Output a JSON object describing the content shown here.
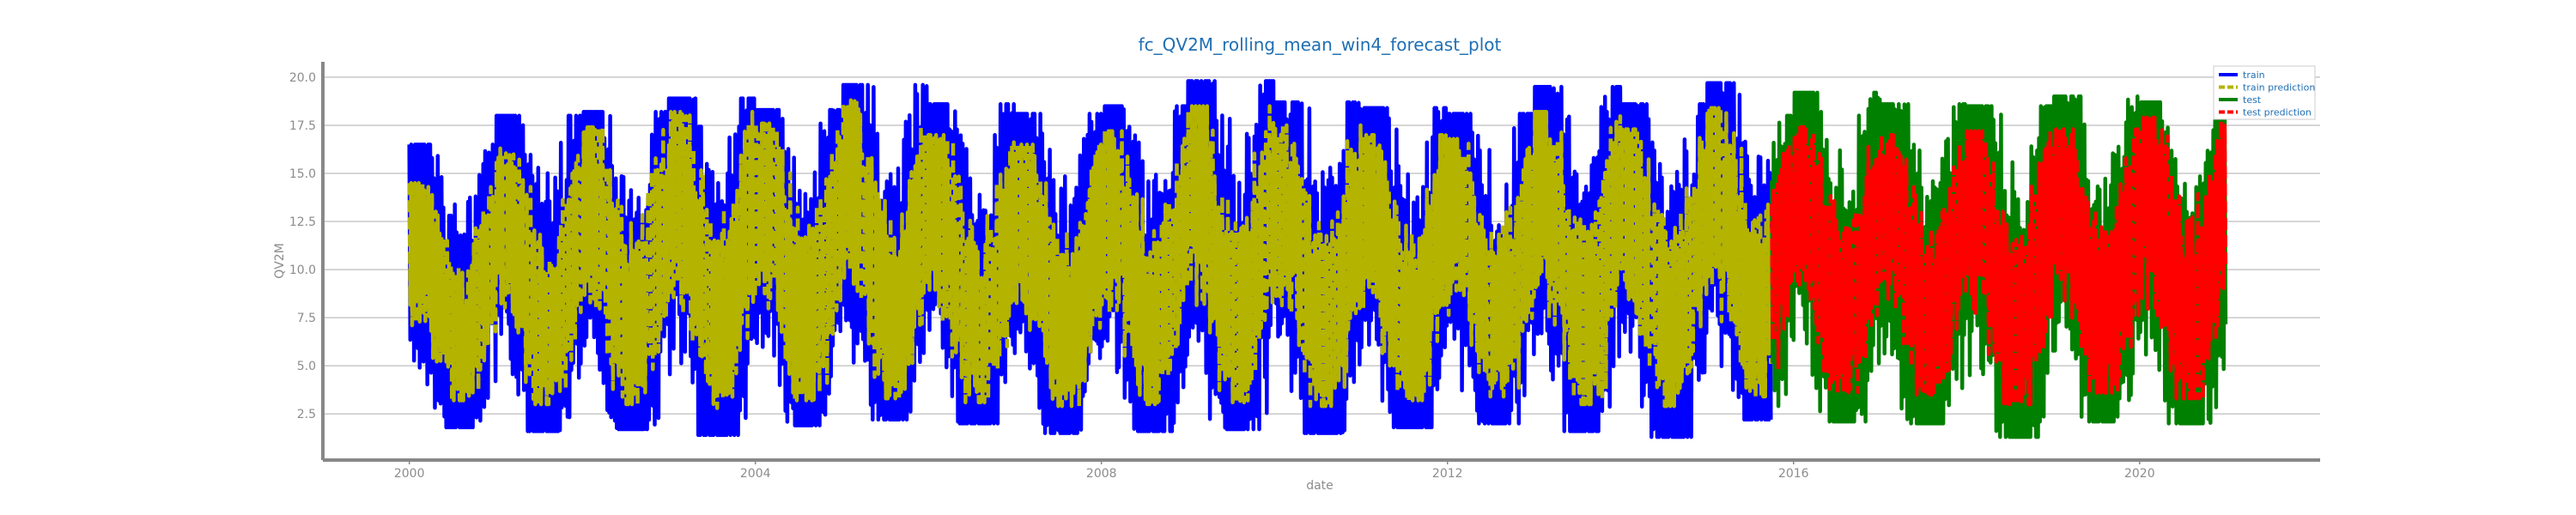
{
  "chart_data": {
    "type": "line",
    "title": "fc_QV2M_rolling_mean_win4_forecast_plot",
    "xlabel": "date",
    "ylabel": "QV2M",
    "x_tick_labels": [
      "2000",
      "2004",
      "2008",
      "2012",
      "2016",
      "2020"
    ],
    "y_tick_labels": [
      "2.5",
      "5.0",
      "7.5",
      "10.0",
      "12.5",
      "15.0",
      "17.5",
      "20.0"
    ],
    "xlim": [
      "1999-01-01",
      "2022-02-01"
    ],
    "ylim": [
      0.1,
      20.8
    ],
    "grid": "y",
    "legend_position": "upper right",
    "train_period": [
      "2000-01-01",
      "2015-09-30"
    ],
    "test_period": [
      "2015-10-01",
      "2020-12-31"
    ],
    "series": [
      {
        "name": "train",
        "color": "#0000ff",
        "style": "solid",
        "values_note": "weekly-scale oscillation between seasonal lows and highs",
        "yearly_envelope": [
          {
            "year": 2000,
            "low": 1.8,
            "high": 16.5
          },
          {
            "year": 2001,
            "low": 1.6,
            "high": 18.0
          },
          {
            "year": 2002,
            "low": 1.7,
            "high": 18.2
          },
          {
            "year": 2003,
            "low": 1.4,
            "high": 18.9
          },
          {
            "year": 2004,
            "low": 1.9,
            "high": 18.3
          },
          {
            "year": 2005,
            "low": 2.2,
            "high": 19.6
          },
          {
            "year": 2006,
            "low": 2.0,
            "high": 18.6
          },
          {
            "year": 2007,
            "low": 1.5,
            "high": 18.1
          },
          {
            "year": 2008,
            "low": 1.6,
            "high": 18.5
          },
          {
            "year": 2009,
            "low": 1.7,
            "high": 19.8
          },
          {
            "year": 2010,
            "low": 1.5,
            "high": 18.7
          },
          {
            "year": 2011,
            "low": 1.8,
            "high": 18.4
          },
          {
            "year": 2012,
            "low": 2.0,
            "high": 18.1
          },
          {
            "year": 2013,
            "low": 1.6,
            "high": 19.5
          },
          {
            "year": 2014,
            "low": 1.3,
            "high": 18.6
          },
          {
            "year": 2015,
            "low": 2.2,
            "high": 19.7
          }
        ]
      },
      {
        "name": "train prediction",
        "color": "#b3b300",
        "style": "dashed",
        "yearly_envelope": [
          {
            "year": 2000,
            "low": 3.2,
            "high": 14.5
          },
          {
            "year": 2001,
            "low": 3.0,
            "high": 16.3
          },
          {
            "year": 2002,
            "low": 3.0,
            "high": 17.4
          },
          {
            "year": 2003,
            "low": 2.8,
            "high": 18.2
          },
          {
            "year": 2004,
            "low": 3.2,
            "high": 17.6
          },
          {
            "year": 2005,
            "low": 3.3,
            "high": 18.8
          },
          {
            "year": 2006,
            "low": 3.1,
            "high": 17.0
          },
          {
            "year": 2007,
            "low": 2.9,
            "high": 16.5
          },
          {
            "year": 2008,
            "low": 3.0,
            "high": 17.2
          },
          {
            "year": 2009,
            "low": 3.1,
            "high": 18.5
          },
          {
            "year": 2010,
            "low": 2.9,
            "high": 17.5
          },
          {
            "year": 2011,
            "low": 3.2,
            "high": 17.0
          },
          {
            "year": 2012,
            "low": 3.4,
            "high": 16.8
          },
          {
            "year": 2013,
            "low": 3.0,
            "high": 18.2
          },
          {
            "year": 2014,
            "low": 2.9,
            "high": 17.3
          },
          {
            "year": 2015,
            "low": 3.4,
            "high": 18.4
          }
        ]
      },
      {
        "name": "test",
        "color": "#008000",
        "style": "solid",
        "yearly_envelope": [
          {
            "year": 2015,
            "low": 2.9,
            "high": 18.0
          },
          {
            "year": 2016,
            "low": 2.1,
            "high": 19.2
          },
          {
            "year": 2017,
            "low": 2.0,
            "high": 18.6
          },
          {
            "year": 2018,
            "low": 1.3,
            "high": 18.5
          },
          {
            "year": 2019,
            "low": 2.1,
            "high": 19.0
          },
          {
            "year": 2020,
            "low": 2.0,
            "high": 18.7
          }
        ]
      },
      {
        "name": "test prediction",
        "color": "#ff0000",
        "style": "dashed",
        "yearly_envelope": [
          {
            "year": 2015,
            "low": 4.2,
            "high": 17.0
          },
          {
            "year": 2016,
            "low": 3.6,
            "high": 17.4
          },
          {
            "year": 2017,
            "low": 3.5,
            "high": 17.0
          },
          {
            "year": 2018,
            "low": 3.0,
            "high": 17.2
          },
          {
            "year": 2019,
            "low": 3.6,
            "high": 17.3
          },
          {
            "year": 2020,
            "low": 3.3,
            "high": 17.9
          }
        ]
      }
    ]
  }
}
